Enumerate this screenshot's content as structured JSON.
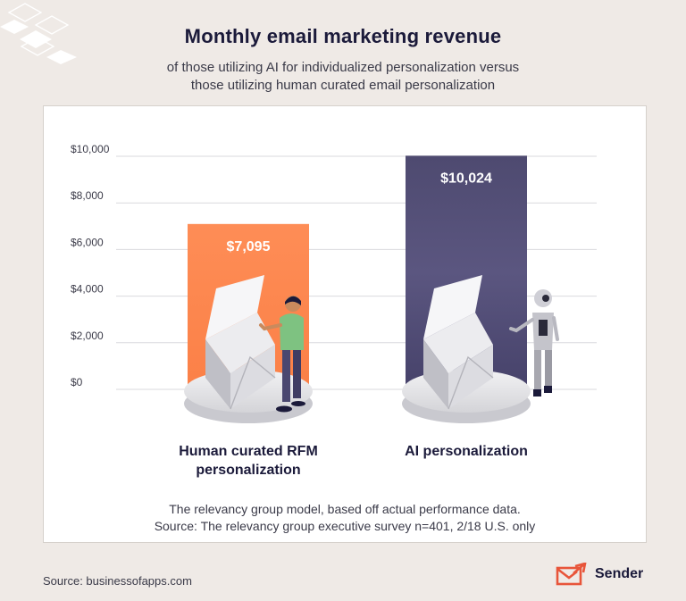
{
  "header": {
    "title": "Monthly email marketing revenue",
    "subtitle_line1": "of those utilizing AI for individualized personalization versus",
    "subtitle_line2": "those utilizing human curated email personalization"
  },
  "chart_data": {
    "type": "bar",
    "title": "Monthly email marketing revenue",
    "categories": [
      "Human curated RFM personalization",
      "AI personalization"
    ],
    "category_lines": [
      [
        "Human curated RFM",
        "personalization"
      ],
      [
        "AI personalization"
      ]
    ],
    "values": [
      7095,
      10024
    ],
    "data_labels": [
      "$7,095",
      "$10,024"
    ],
    "yticks": [
      0,
      2000,
      4000,
      6000,
      8000,
      10000
    ],
    "ytick_labels": [
      "$0",
      "$2,000",
      "$4,000",
      "$6,000",
      "$8,000",
      "$10,000"
    ],
    "ylim": [
      0,
      10000
    ],
    "grid": true,
    "colors": [
      "#fd8a52",
      "#4f4a72"
    ]
  },
  "footnote": {
    "line1": "The relevancy group model, based off actual performance data.",
    "line2": "Source: The relevancy group executive survey n=401, 2/18 U.S. only"
  },
  "source_text": "Source: businessofapps.com",
  "brand": {
    "name": "Sender",
    "accent": "#e8553a"
  },
  "icons": [
    "envelope-illustration-icon",
    "person-illustration-icon",
    "robot-illustration-icon",
    "sender-logo-icon"
  ]
}
